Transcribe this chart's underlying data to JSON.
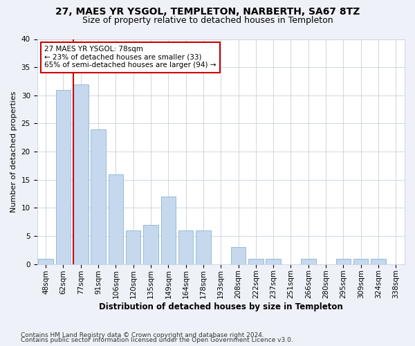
{
  "title1": "27, MAES YR YSGOL, TEMPLETON, NARBERTH, SA67 8TZ",
  "title2": "Size of property relative to detached houses in Templeton",
  "xlabel": "Distribution of detached houses by size in Templeton",
  "ylabel": "Number of detached properties",
  "bar_color": "#c5d8ed",
  "bar_edge_color": "#8ab4d4",
  "categories": [
    "48sqm",
    "62sqm",
    "77sqm",
    "91sqm",
    "106sqm",
    "120sqm",
    "135sqm",
    "149sqm",
    "164sqm",
    "178sqm",
    "193sqm",
    "208sqm",
    "222sqm",
    "237sqm",
    "251sqm",
    "266sqm",
    "280sqm",
    "295sqm",
    "309sqm",
    "324sqm",
    "338sqm"
  ],
  "values": [
    1,
    31,
    32,
    24,
    16,
    6,
    7,
    12,
    6,
    6,
    0,
    3,
    1,
    1,
    0,
    1,
    0,
    1,
    1,
    1,
    0
  ],
  "vline_x_index": 2,
  "vline_color": "#cc0000",
  "annotation_line1": "27 MAES YR YSGOL: 78sqm",
  "annotation_line2": "← 23% of detached houses are smaller (33)",
  "annotation_line3": "65% of semi-detached houses are larger (94) →",
  "annotation_box_color": "#ffffff",
  "annotation_box_edge": "#cc0000",
  "ylim": [
    0,
    40
  ],
  "yticks": [
    0,
    5,
    10,
    15,
    20,
    25,
    30,
    35,
    40
  ],
  "footer1": "Contains HM Land Registry data © Crown copyright and database right 2024.",
  "footer2": "Contains public sector information licensed under the Open Government Licence v3.0.",
  "bg_color": "#eef2f8",
  "plot_bg_color": "#ffffff",
  "grid_color": "#c8d0dc",
  "title1_fontsize": 10,
  "title2_fontsize": 9,
  "xlabel_fontsize": 8.5,
  "ylabel_fontsize": 8,
  "tick_fontsize": 7.5,
  "annotation_fontsize": 7.5,
  "footer_fontsize": 6.5
}
